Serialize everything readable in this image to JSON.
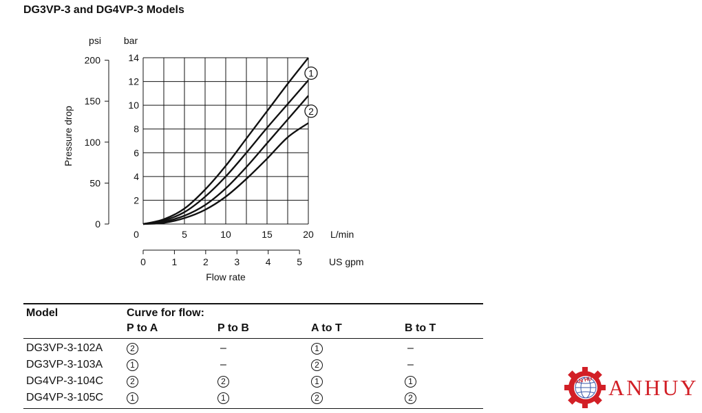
{
  "title": "DG3VP-3 and DG4VP-3 Models",
  "chart_data": {
    "type": "line",
    "x_unit_primary": "L/min",
    "x_unit_secondary": "US gpm",
    "xlabel": "Flow rate",
    "ylabel": "Pressure drop",
    "y_unit_primary": "bar",
    "y_unit_secondary": "psi",
    "xlim": [
      0,
      20
    ],
    "ylim": [
      0,
      14
    ],
    "grid": true,
    "x_ticks_lmin": [
      0,
      5,
      10,
      15,
      20
    ],
    "x_ticks_gpm": [
      0,
      1,
      2,
      3,
      4,
      5
    ],
    "y_ticks_bar": [
      2,
      4,
      6,
      8,
      10,
      12,
      14
    ],
    "y_ticks_psi": [
      0,
      50,
      100,
      150,
      200
    ],
    "curve_labels": [
      {
        "text": "1",
        "x": 20,
        "y": 12.7
      },
      {
        "text": "2",
        "x": 20,
        "y": 9.5
      }
    ],
    "series": [
      {
        "x": [
          0,
          2.5,
          5,
          7.5,
          10,
          12.5,
          15,
          17.5,
          20
        ],
        "values": [
          0,
          0.4,
          1.3,
          2.9,
          4.9,
          7.2,
          9.5,
          11.8,
          14.0
        ]
      },
      {
        "x": [
          0,
          2.5,
          5,
          7.5,
          10,
          12.5,
          15,
          17.5,
          20
        ],
        "values": [
          0,
          0.3,
          1.0,
          2.3,
          4.0,
          6.0,
          8.1,
          10.1,
          12.1
        ]
      },
      {
        "x": [
          0,
          2.5,
          5,
          7.5,
          10,
          12.5,
          15,
          17.5,
          20
        ],
        "values": [
          0,
          0.2,
          0.7,
          1.6,
          3.0,
          4.8,
          6.8,
          8.8,
          10.8
        ]
      },
      {
        "x": [
          0,
          2.5,
          5,
          7.5,
          10,
          12.5,
          15,
          17.5,
          20
        ],
        "values": [
          0,
          0.1,
          0.5,
          1.2,
          2.3,
          3.8,
          5.5,
          7.3,
          8.5
        ]
      }
    ]
  },
  "table": {
    "model_header": "Model",
    "curve_header": "Curve for flow:",
    "columns": [
      "P to A",
      "P to B",
      "A to T",
      "B to T"
    ],
    "rows": [
      {
        "model": "DG3VP-3-102A",
        "cells": [
          "2",
          "–",
          "1",
          "–"
        ]
      },
      {
        "model": "DG3VP-3-103A",
        "cells": [
          "1",
          "–",
          "2",
          "–"
        ]
      },
      {
        "model": "DG4VP-3-104C",
        "cells": [
          "2",
          "2",
          "1",
          "1"
        ]
      },
      {
        "model": "DG4VP-3-105C",
        "cells": [
          "1",
          "1",
          "2",
          "2"
        ]
      }
    ]
  },
  "logo": {
    "text": "ANHUY",
    "badge_text": "AN HUY",
    "color": "#d21f26"
  }
}
